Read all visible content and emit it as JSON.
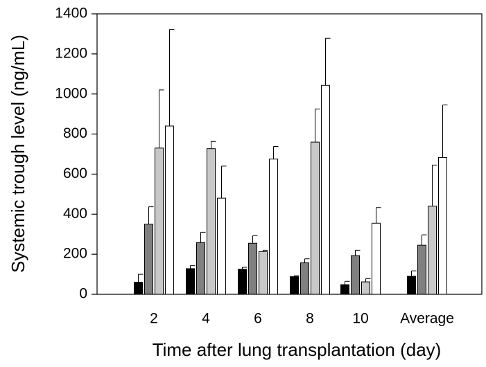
{
  "chart_data": {
    "type": "bar",
    "categories": [
      "2",
      "4",
      "6",
      "8",
      "10",
      "Average"
    ],
    "x_label": "Time after lung transplantation (day)",
    "y_label": "Systemic trough level (ng/mL)",
    "ylim": [
      0,
      1400
    ],
    "yticks": [
      0,
      200,
      400,
      600,
      800,
      1000,
      1200,
      1400
    ],
    "series": [
      {
        "color": "#000000",
        "values": [
          60,
          128,
          125,
          88,
          48,
          90
        ],
        "errors": [
          40,
          15,
          10,
          5,
          17,
          27
        ]
      },
      {
        "color": "#808080",
        "values": [
          350,
          258,
          255,
          157,
          193,
          245
        ],
        "errors": [
          87,
          52,
          38,
          20,
          27,
          52
        ]
      },
      {
        "color": "#c8c8c8",
        "values": [
          730,
          727,
          213,
          760,
          62,
          440
        ],
        "errors": [
          290,
          36,
          7,
          165,
          16,
          205
        ]
      },
      {
        "color": "#ffffff",
        "values": [
          840,
          480,
          675,
          1043,
          355,
          683
        ],
        "errors": [
          482,
          160,
          63,
          235,
          78,
          262
        ]
      }
    ]
  }
}
